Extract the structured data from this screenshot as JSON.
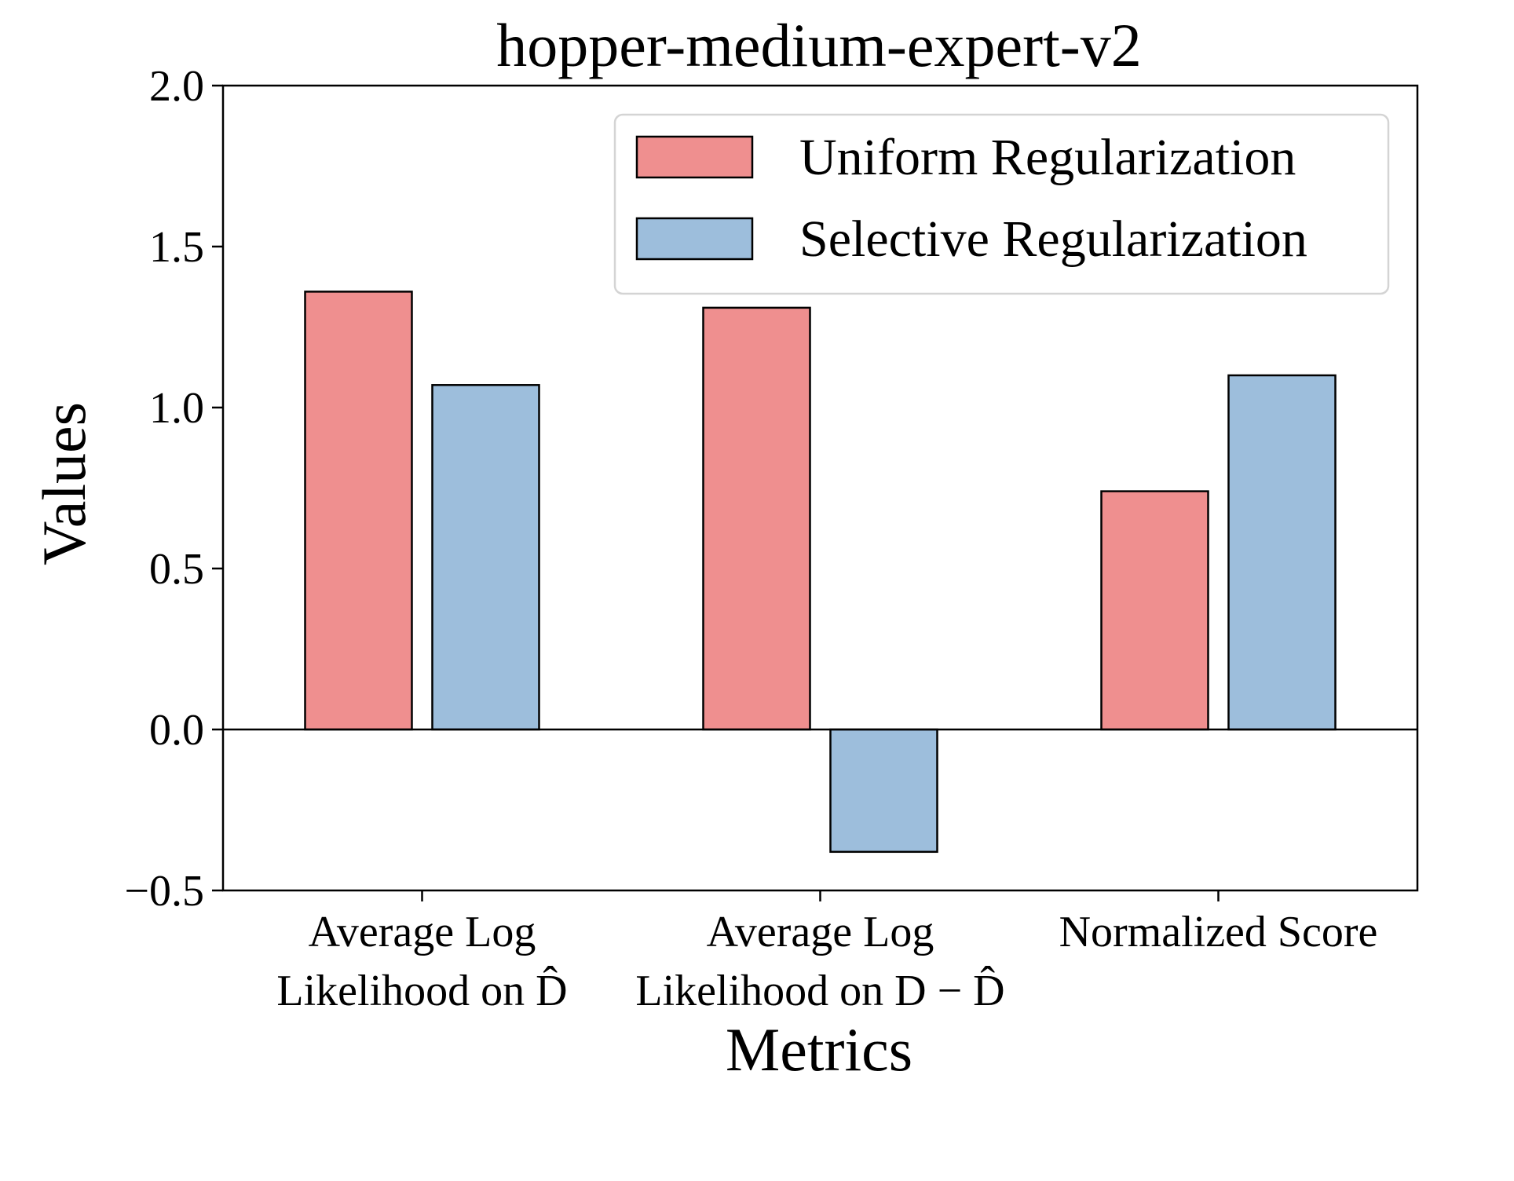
{
  "chart_data": {
    "type": "bar",
    "title": "hopper-medium-expert-v2",
    "xlabel": "Metrics",
    "ylabel": "Values",
    "ylim": [
      -0.5,
      2.0
    ],
    "yticks": [
      -0.5,
      0.0,
      0.5,
      1.0,
      1.5,
      2.0
    ],
    "ytick_labels": [
      "−0.5",
      "0.0",
      "0.5",
      "1.0",
      "1.5",
      "2.0"
    ],
    "categories": [
      {
        "lines": [
          "Average Log",
          "Likelihood on D̂"
        ]
      },
      {
        "lines": [
          "Average Log",
          "Likelihood on D − D̂"
        ]
      },
      {
        "lines": [
          "Normalized Score"
        ]
      }
    ],
    "series": [
      {
        "name": "Uniform Regularization",
        "color": "#ef8f8f",
        "values": [
          1.36,
          1.31,
          0.74
        ]
      },
      {
        "name": "Selective Regularization",
        "color": "#9dbedc",
        "values": [
          1.07,
          -0.38,
          1.1
        ]
      }
    ],
    "grid": false,
    "legend": "top-right",
    "zero_line": true
  }
}
